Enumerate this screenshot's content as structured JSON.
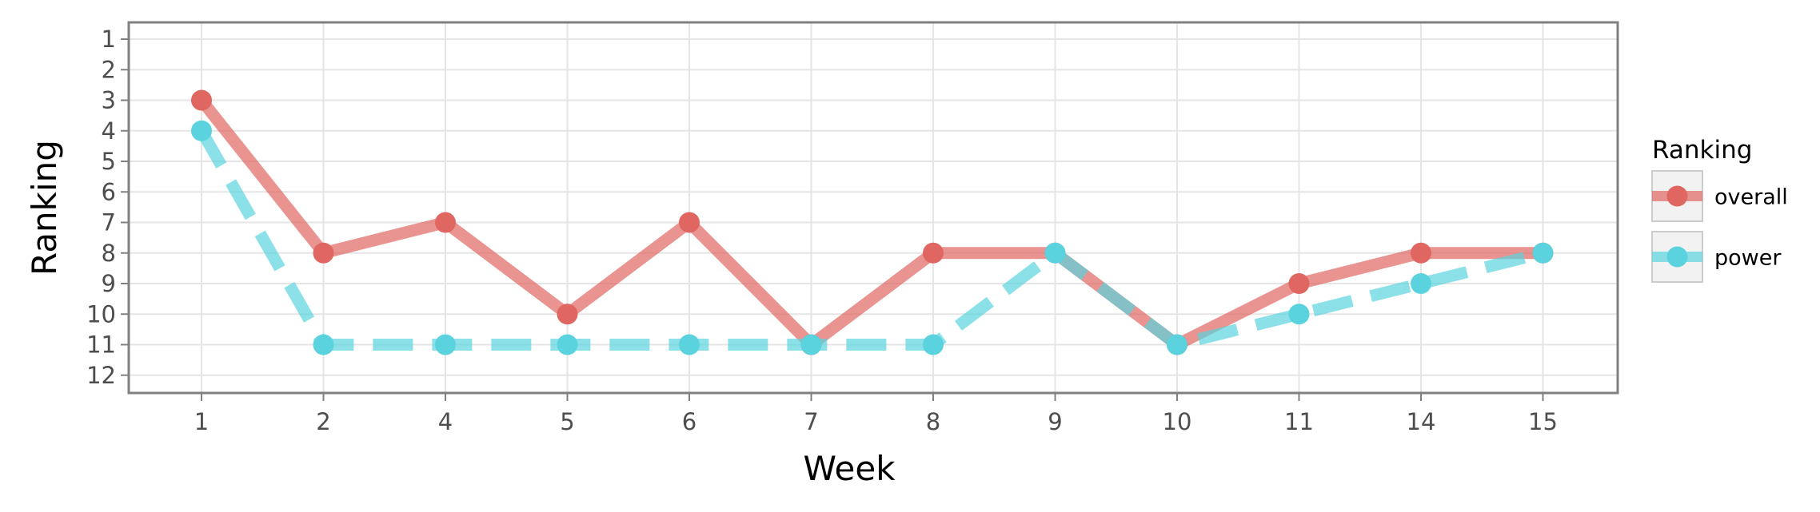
{
  "chart_data": {
    "type": "line",
    "xlabel": "Week",
    "ylabel": "Ranking",
    "categories": [
      "1",
      "2",
      "4",
      "5",
      "6",
      "7",
      "8",
      "9",
      "10",
      "11",
      "14",
      "15"
    ],
    "y_ticks": [
      "1",
      "2",
      "3",
      "4",
      "5",
      "6",
      "7",
      "8",
      "9",
      "10",
      "11",
      "12"
    ],
    "ylim": [
      1,
      12
    ],
    "y_reversed": true,
    "grid": true,
    "legend": {
      "title": "Ranking",
      "placement": "right"
    },
    "series": [
      {
        "name": "overall",
        "values": [
          3,
          8,
          7,
          10,
          7,
          11,
          8,
          8,
          11,
          9,
          8,
          8
        ],
        "color": "#e06661",
        "line_style": "solid"
      },
      {
        "name": "power",
        "values": [
          4,
          11,
          11,
          11,
          11,
          11,
          11,
          8,
          11,
          10,
          9,
          8
        ],
        "color": "#5bd3de",
        "line_style": "dashed"
      }
    ]
  }
}
